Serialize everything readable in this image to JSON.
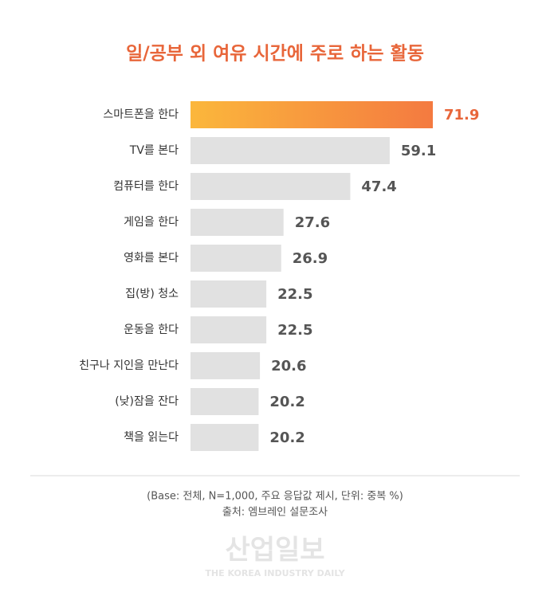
{
  "chart_data": {
    "type": "hbar",
    "title": "일/공부 외 여유 시간에 주로 하는 활동",
    "categories": [
      "스마트폰을 한다",
      "TV를 본다",
      "컴퓨터를 한다",
      "게임을 한다",
      "영화를 본다",
      "집(방) 청소",
      "운동을 한다",
      "친구나 지인을 만난다",
      "(낮)잠을 잔다",
      "책을 읽는다"
    ],
    "values": [
      71.9,
      59.1,
      47.4,
      27.6,
      26.9,
      22.5,
      22.5,
      20.6,
      20.2,
      20.2
    ],
    "colors": [
      "#f89b3c",
      "#e1e1e1",
      "#e1e1e1",
      "#e1e1e1",
      "#e1e1e1",
      "#e1e1e1",
      "#e1e1e1",
      "#e1e1e1",
      "#e1e1e1",
      "#e1e1e1"
    ],
    "label_colors": [
      "#e8663a",
      "#555555",
      "#555555",
      "#555555",
      "#555555",
      "#555555",
      "#555555",
      "#555555",
      "#555555",
      "#555555"
    ],
    "notes": [
      "(Base: 전체, N=1,000, 주요 응답값 제시, 단위: 중복 %)",
      "출처: 엠브레인 설문조사"
    ],
    "watermark": [
      "산업일보",
      "THE KOREA INDUSTRY DAILY"
    ]
  }
}
